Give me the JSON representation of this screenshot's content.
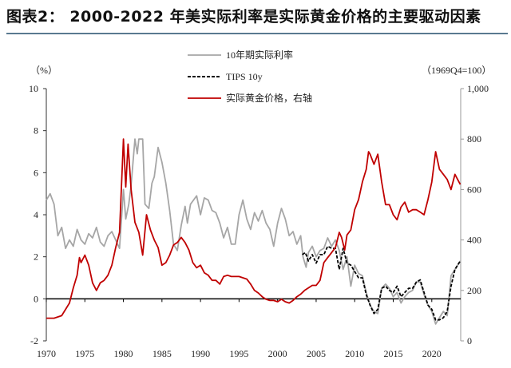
{
  "title": "图表2： 2000-2022 年美实际利率是实际黄金价格的主要驱动因素",
  "chart_data": {
    "type": "line",
    "left_unit": "（%）",
    "right_unit": "（1969Q4=100）",
    "left_ylim": [
      -2,
      10
    ],
    "left_ticks": [
      "-2",
      "0",
      "2",
      "4",
      "6",
      "8",
      "10"
    ],
    "right_ylim": [
      0,
      1000
    ],
    "right_ticks": [
      "0",
      "200",
      "400",
      "600",
      "800",
      "1,000"
    ],
    "xlim": [
      1970,
      2023.75
    ],
    "x_ticks": [
      "1970",
      "1975",
      "1980",
      "1985",
      "1990",
      "1995",
      "2000",
      "2005",
      "2010",
      "2015",
      "2020"
    ],
    "legend_placement": "top-center",
    "series": [
      {
        "name": "10年期实际利率",
        "axis": "left",
        "color": "#a6a6a6",
        "style": "solid",
        "points": [
          [
            1970,
            4.7
          ],
          [
            1970.5,
            5.0
          ],
          [
            1971,
            4.5
          ],
          [
            1971.5,
            3.0
          ],
          [
            1972,
            3.4
          ],
          [
            1972.5,
            2.4
          ],
          [
            1973,
            2.8
          ],
          [
            1973.5,
            2.5
          ],
          [
            1974,
            3.3
          ],
          [
            1974.5,
            2.8
          ],
          [
            1975,
            2.6
          ],
          [
            1975.5,
            3.1
          ],
          [
            1976,
            2.9
          ],
          [
            1976.5,
            3.4
          ],
          [
            1977,
            2.7
          ],
          [
            1977.5,
            2.5
          ],
          [
            1978,
            3.0
          ],
          [
            1978.5,
            3.2
          ],
          [
            1979,
            2.8
          ],
          [
            1979.5,
            2.4
          ],
          [
            1980,
            5.2
          ],
          [
            1980.3,
            3.8
          ],
          [
            1980.7,
            4.5
          ],
          [
            1981,
            5.4
          ],
          [
            1981.5,
            7.6
          ],
          [
            1981.8,
            6.9
          ],
          [
            1982,
            7.6
          ],
          [
            1982.5,
            7.6
          ],
          [
            1982.8,
            4.5
          ],
          [
            1983.3,
            4.3
          ],
          [
            1983.7,
            5.5
          ],
          [
            1984,
            5.8
          ],
          [
            1984.5,
            7.2
          ],
          [
            1985,
            6.5
          ],
          [
            1985.5,
            5.5
          ],
          [
            1986,
            4.2
          ],
          [
            1986.5,
            2.6
          ],
          [
            1987,
            2.3
          ],
          [
            1987.5,
            3.5
          ],
          [
            1988,
            4.4
          ],
          [
            1988.3,
            3.6
          ],
          [
            1988.7,
            4.5
          ],
          [
            1989.5,
            4.9
          ],
          [
            1990,
            4.0
          ],
          [
            1990.5,
            4.8
          ],
          [
            1991,
            4.7
          ],
          [
            1991.5,
            4.2
          ],
          [
            1992,
            4.1
          ],
          [
            1992.5,
            3.6
          ],
          [
            1993,
            2.9
          ],
          [
            1993.5,
            3.4
          ],
          [
            1994,
            2.6
          ],
          [
            1994.5,
            2.6
          ],
          [
            1995,
            4.0
          ],
          [
            1995.5,
            4.7
          ],
          [
            1996,
            3.8
          ],
          [
            1996.5,
            3.3
          ],
          [
            1997,
            4.1
          ],
          [
            1997.5,
            3.7
          ],
          [
            1998,
            4.2
          ],
          [
            1998.5,
            3.6
          ],
          [
            1999,
            3.3
          ],
          [
            1999.5,
            2.5
          ],
          [
            2000,
            3.6
          ],
          [
            2000.5,
            4.3
          ],
          [
            2001,
            3.8
          ],
          [
            2001.5,
            3.0
          ],
          [
            2002,
            3.2
          ],
          [
            2002.5,
            2.6
          ],
          [
            2003,
            3.0
          ],
          [
            2003.3,
            2.0
          ],
          [
            2003.7,
            1.5
          ],
          [
            2004,
            2.2
          ],
          [
            2004.5,
            2.5
          ],
          [
            2005,
            2.0
          ],
          [
            2005.5,
            2.3
          ],
          [
            2006,
            2.4
          ],
          [
            2006.5,
            2.9
          ],
          [
            2007,
            2.5
          ],
          [
            2007.5,
            2.8
          ],
          [
            2008,
            2.3
          ],
          [
            2008.5,
            1.4
          ],
          [
            2009,
            2.0
          ],
          [
            2009.5,
            0.6
          ],
          [
            2010,
            1.6
          ],
          [
            2010.5,
            1.2
          ],
          [
            2011,
            1.1
          ],
          [
            2011.5,
            0.3
          ],
          [
            2012,
            -0.3
          ],
          [
            2012.5,
            -0.6
          ],
          [
            2013,
            -0.7
          ],
          [
            2013.5,
            0.5
          ],
          [
            2014,
            0.7
          ],
          [
            2014.5,
            0.5
          ],
          [
            2015,
            0.1
          ],
          [
            2015.5,
            0.3
          ],
          [
            2016,
            -0.2
          ],
          [
            2016.5,
            0.1
          ],
          [
            2017,
            0.3
          ],
          [
            2017.5,
            0.4
          ],
          [
            2018,
            0.8
          ],
          [
            2018.5,
            0.8
          ],
          [
            2019,
            0.2
          ],
          [
            2019.5,
            -0.3
          ],
          [
            2020,
            -0.6
          ],
          [
            2020.5,
            -1.2
          ],
          [
            2021,
            -0.9
          ],
          [
            2021.5,
            -0.6
          ],
          [
            2022,
            -0.8
          ],
          [
            2022.5,
            1.1
          ],
          [
            2023,
            1.4
          ],
          [
            2023.7,
            1.8
          ]
        ]
      },
      {
        "name": "TIPS 10y",
        "axis": "left",
        "color": "#000000",
        "style": "dashed",
        "points": [
          [
            2003.2,
            2.1
          ],
          [
            2003.6,
            2.2
          ],
          [
            2004,
            1.8
          ],
          [
            2004.5,
            2.1
          ],
          [
            2005,
            1.7
          ],
          [
            2005.5,
            2.1
          ],
          [
            2006,
            2.1
          ],
          [
            2006.5,
            2.5
          ],
          [
            2007,
            2.4
          ],
          [
            2007.5,
            2.4
          ],
          [
            2008,
            1.4
          ],
          [
            2008.5,
            2.4
          ],
          [
            2009,
            1.7
          ],
          [
            2009.5,
            1.6
          ],
          [
            2010,
            1.3
          ],
          [
            2010.5,
            1.0
          ],
          [
            2011,
            1.0
          ],
          [
            2011.5,
            0.2
          ],
          [
            2012,
            -0.3
          ],
          [
            2012.5,
            -0.7
          ],
          [
            2013,
            -0.5
          ],
          [
            2013.5,
            0.5
          ],
          [
            2014,
            0.6
          ],
          [
            2014.5,
            0.4
          ],
          [
            2015,
            0.3
          ],
          [
            2015.5,
            0.6
          ],
          [
            2016,
            0.1
          ],
          [
            2016.5,
            0.3
          ],
          [
            2017,
            0.5
          ],
          [
            2017.5,
            0.5
          ],
          [
            2018,
            0.8
          ],
          [
            2018.5,
            0.9
          ],
          [
            2019,
            0.3
          ],
          [
            2019.5,
            -0.3
          ],
          [
            2020,
            -0.5
          ],
          [
            2020.5,
            -1.0
          ],
          [
            2021,
            -1.0
          ],
          [
            2021.5,
            -0.9
          ],
          [
            2022,
            -0.6
          ],
          [
            2022.5,
            0.6
          ],
          [
            2023,
            1.4
          ],
          [
            2023.7,
            1.8
          ]
        ]
      },
      {
        "name": "实际黄金价格，右轴",
        "axis": "right",
        "color": "#c00000",
        "style": "solid",
        "points": [
          [
            1970,
            90
          ],
          [
            1971,
            90
          ],
          [
            1972,
            100
          ],
          [
            1973,
            150
          ],
          [
            1973.5,
            210
          ],
          [
            1974,
            260
          ],
          [
            1974.3,
            330
          ],
          [
            1974.5,
            310
          ],
          [
            1975,
            340
          ],
          [
            1975.5,
            300
          ],
          [
            1976,
            230
          ],
          [
            1976.5,
            200
          ],
          [
            1977,
            230
          ],
          [
            1977.5,
            240
          ],
          [
            1978,
            260
          ],
          [
            1978.5,
            300
          ],
          [
            1979,
            370
          ],
          [
            1979.5,
            430
          ],
          [
            1980,
            800
          ],
          [
            1980.3,
            610
          ],
          [
            1980.6,
            780
          ],
          [
            1981,
            600
          ],
          [
            1981.5,
            470
          ],
          [
            1982,
            430
          ],
          [
            1982.5,
            340
          ],
          [
            1983,
            500
          ],
          [
            1983.5,
            440
          ],
          [
            1984,
            400
          ],
          [
            1984.5,
            370
          ],
          [
            1985,
            300
          ],
          [
            1985.5,
            310
          ],
          [
            1986,
            340
          ],
          [
            1986.5,
            380
          ],
          [
            1987,
            390
          ],
          [
            1987.5,
            410
          ],
          [
            1988,
            390
          ],
          [
            1988.5,
            360
          ],
          [
            1989,
            310
          ],
          [
            1989.5,
            290
          ],
          [
            1990,
            300
          ],
          [
            1990.5,
            270
          ],
          [
            1991,
            260
          ],
          [
            1991.5,
            240
          ],
          [
            1992,
            240
          ],
          [
            1992.5,
            225
          ],
          [
            1993,
            255
          ],
          [
            1993.5,
            260
          ],
          [
            1994,
            255
          ],
          [
            1994.5,
            255
          ],
          [
            1995,
            255
          ],
          [
            1995.5,
            250
          ],
          [
            1996,
            245
          ],
          [
            1996.5,
            225
          ],
          [
            1997,
            200
          ],
          [
            1997.5,
            190
          ],
          [
            1998,
            175
          ],
          [
            1998.5,
            165
          ],
          [
            1999,
            160
          ],
          [
            1999.5,
            160
          ],
          [
            2000,
            155
          ],
          [
            2000.5,
            165
          ],
          [
            2001,
            155
          ],
          [
            2001.5,
            150
          ],
          [
            2002,
            160
          ],
          [
            2002.5,
            175
          ],
          [
            2003,
            185
          ],
          [
            2003.5,
            200
          ],
          [
            2004,
            210
          ],
          [
            2004.5,
            220
          ],
          [
            2005,
            220
          ],
          [
            2005.5,
            240
          ],
          [
            2006,
            310
          ],
          [
            2006.5,
            330
          ],
          [
            2007,
            350
          ],
          [
            2007.5,
            370
          ],
          [
            2008,
            430
          ],
          [
            2008.3,
            410
          ],
          [
            2008.7,
            360
          ],
          [
            2009,
            420
          ],
          [
            2009.5,
            440
          ],
          [
            2010,
            520
          ],
          [
            2010.5,
            560
          ],
          [
            2011,
            630
          ],
          [
            2011.5,
            680
          ],
          [
            2011.8,
            750
          ],
          [
            2012,
            740
          ],
          [
            2012.5,
            700
          ],
          [
            2013,
            740
          ],
          [
            2013.5,
            630
          ],
          [
            2014,
            540
          ],
          [
            2014.5,
            540
          ],
          [
            2015,
            500
          ],
          [
            2015.5,
            480
          ],
          [
            2016,
            530
          ],
          [
            2016.5,
            550
          ],
          [
            2017,
            510
          ],
          [
            2017.5,
            520
          ],
          [
            2018,
            520
          ],
          [
            2018.5,
            510
          ],
          [
            2019,
            500
          ],
          [
            2019.5,
            560
          ],
          [
            2020,
            630
          ],
          [
            2020.5,
            750
          ],
          [
            2021,
            680
          ],
          [
            2021.5,
            660
          ],
          [
            2022,
            640
          ],
          [
            2022.5,
            600
          ],
          [
            2023,
            660
          ],
          [
            2023.7,
            620
          ]
        ]
      }
    ]
  }
}
